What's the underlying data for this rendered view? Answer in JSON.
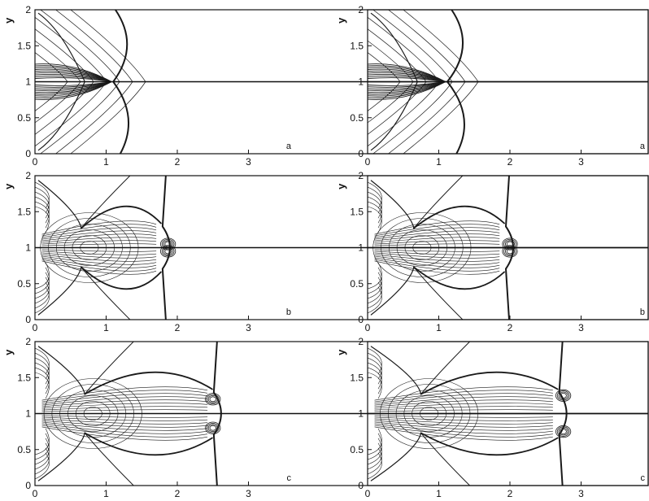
{
  "figure": {
    "ylabel": "y",
    "panel_letters": [
      "a",
      "a",
      "b",
      "b",
      "c",
      "c"
    ]
  },
  "chart_data": [
    {
      "type": "contour",
      "panel_label": "a",
      "xlim": [
        0,
        4.4
      ],
      "ylim": [
        0,
        2
      ],
      "xticks": [
        0,
        1,
        2,
        3
      ],
      "yticks": [
        0,
        0.5,
        1,
        1.5,
        2
      ],
      "ylabel": "y",
      "features": {
        "shock_front_x_max": 1.45,
        "triple_point": [
          1.1,
          1.0
        ],
        "vortex": null
      }
    },
    {
      "type": "contour",
      "panel_label": "a",
      "xlim": [
        0,
        4.4
      ],
      "ylim": [
        0,
        2
      ],
      "xticks": [
        0,
        1,
        2,
        3
      ],
      "yticks": [
        0,
        0.5,
        1,
        1.5,
        2
      ],
      "ylabel": "y",
      "features": {
        "shock_front_x_max": 1.5,
        "triple_point": [
          1.12,
          1.0
        ],
        "vortex": null
      }
    },
    {
      "type": "contour",
      "panel_label": "b",
      "xlim": [
        0,
        4.4
      ],
      "ylim": [
        0,
        2
      ],
      "xticks": [
        0,
        1,
        2,
        3
      ],
      "yticks": [
        0,
        0.5,
        1,
        1.5,
        2
      ],
      "ylabel": "y",
      "features": {
        "shock_front_x_max": 1.93,
        "triple_point": [
          0.65,
          1.27
        ],
        "vortex": [
          1.87,
          1.05
        ]
      }
    },
    {
      "type": "contour",
      "panel_label": "b",
      "xlim": [
        0,
        4.4
      ],
      "ylim": [
        0,
        2
      ],
      "xticks": [
        0,
        1,
        2,
        3
      ],
      "yticks": [
        0,
        0.5,
        1,
        1.5,
        2
      ],
      "ylabel": "y",
      "features": {
        "shock_front_x_max": 2.08,
        "triple_point": [
          0.65,
          1.27
        ],
        "vortex": [
          2.0,
          1.05
        ]
      }
    },
    {
      "type": "contour",
      "panel_label": "c",
      "xlim": [
        0,
        4.4
      ],
      "ylim": [
        0,
        2
      ],
      "xticks": [
        0,
        1,
        2,
        3
      ],
      "yticks": [
        0,
        0.5,
        1,
        1.5,
        2
      ],
      "ylabel": "y",
      "features": {
        "shock_front_x_max": 2.65,
        "triple_point": [
          0.7,
          1.27
        ],
        "vortex": [
          2.5,
          1.2
        ]
      }
    },
    {
      "type": "contour",
      "panel_label": "c",
      "xlim": [
        0,
        4.4
      ],
      "ylim": [
        0,
        2
      ],
      "xticks": [
        0,
        1,
        2,
        3
      ],
      "yticks": [
        0,
        0.5,
        1,
        1.5,
        2
      ],
      "ylabel": "y",
      "features": {
        "shock_front_x_max": 2.83,
        "triple_point": [
          0.75,
          1.27
        ],
        "vortex": [
          2.75,
          1.25
        ]
      }
    }
  ]
}
